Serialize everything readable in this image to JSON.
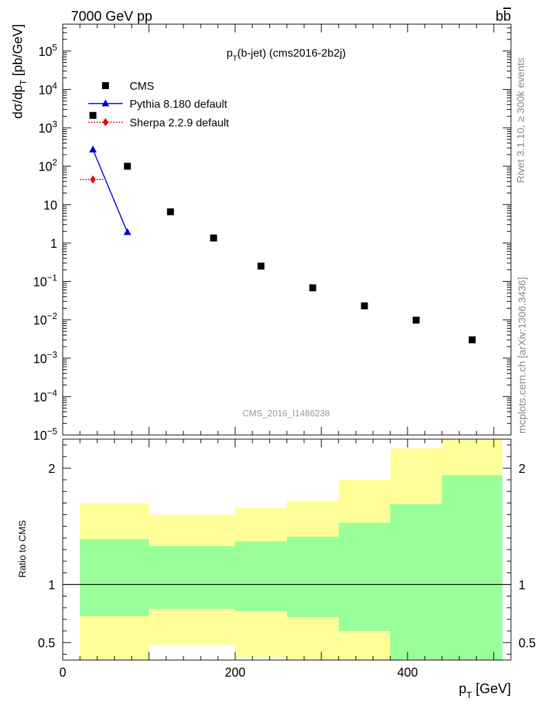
{
  "header": {
    "left": "7000 GeV pp",
    "right": "b",
    "right_bar": "b"
  },
  "side_labels": {
    "top": "Rivet 3.1.10, ≥ 300k events",
    "bottom": "mcplots.cern.ch [arXiv:1306.3436]"
  },
  "watermark": "CMS_2016_I1486238",
  "chart_data": [
    {
      "type": "scatter",
      "panel": "main",
      "title": "pT(b-jet) (cms2016-2b2j)",
      "title_main": "p",
      "title_sub": "T",
      "title_rest": "(b-jet) (cms2016-2b2j)",
      "ylabel": "dσ/dp",
      "ylabel_sub": "T",
      "ylabel_rest": " [pb/GeV]",
      "yscale": "log",
      "xlim": [
        0,
        520
      ],
      "ylim": [
        1e-05,
        500000.0
      ],
      "y_ticks": [
        {
          "value": 100000,
          "label": "10",
          "exp": "5"
        },
        {
          "value": 10000,
          "label": "10",
          "exp": "4"
        },
        {
          "value": 1000,
          "label": "10",
          "exp": "3"
        },
        {
          "value": 100,
          "label": "10",
          "exp": "2"
        },
        {
          "value": 10,
          "label": "10",
          "exp": ""
        },
        {
          "value": 1,
          "label": "1",
          "exp": ""
        },
        {
          "value": 0.1,
          "label": "10",
          "exp": "−1"
        },
        {
          "value": 0.01,
          "label": "10",
          "exp": "−2"
        },
        {
          "value": 0.001,
          "label": "10",
          "exp": "−3"
        },
        {
          "value": 0.0001,
          "label": "10",
          "exp": "−4"
        },
        {
          "value": 1e-05,
          "label": "10",
          "exp": "−5"
        }
      ],
      "legend_position": "top-left",
      "series": [
        {
          "name": "CMS",
          "marker": "square",
          "color": "#000000",
          "points": [
            {
              "x": 35,
              "y": 2100
            },
            {
              "x": 75,
              "y": 100
            },
            {
              "x": 125,
              "y": 6.5
            },
            {
              "x": 175,
              "y": 1.35
            },
            {
              "x": 230,
              "y": 0.25
            },
            {
              "x": 290,
              "y": 0.068
            },
            {
              "x": 350,
              "y": 0.023
            },
            {
              "x": 410,
              "y": 0.0098
            },
            {
              "x": 475,
              "y": 0.003
            }
          ]
        },
        {
          "name": "Pythia 8.180 default",
          "marker": "triangle",
          "color": "#0000cc",
          "line": "solid",
          "points": [
            {
              "x": 35,
              "y": 270
            },
            {
              "x": 75,
              "y": 1.9
            }
          ]
        },
        {
          "name": "Sherpa 2.2.9 default",
          "marker": "diamond",
          "color": "#ee0000",
          "line": "dotted",
          "points": [
            {
              "x": 35,
              "y": 45,
              "xerr": [
                20,
                50
              ]
            }
          ]
        }
      ]
    },
    {
      "type": "area",
      "panel": "ratio",
      "ylabel": "Ratio to CMS",
      "xlabel": "p",
      "xlabel_sub": "T",
      "xlabel_rest": " [GeV]",
      "xlim": [
        0,
        520
      ],
      "ylim": [
        0.35,
        2.25
      ],
      "x_ticks": [
        0,
        200,
        400
      ],
      "y_ticks": [
        0.5,
        1,
        2
      ],
      "reference_line": 1,
      "bands": [
        {
          "x0": 20,
          "x1": 100,
          "green": [
            0.73,
            1.39
          ],
          "yellow": [
            0.35,
            1.7
          ]
        },
        {
          "x0": 100,
          "x1": 200,
          "green": [
            0.79,
            1.33
          ],
          "yellow": [
            0.48,
            1.6
          ]
        },
        {
          "x0": 200,
          "x1": 260,
          "green": [
            0.77,
            1.37
          ],
          "yellow": [
            0.37,
            1.66
          ]
        },
        {
          "x0": 260,
          "x1": 320,
          "green": [
            0.72,
            1.41
          ],
          "yellow": [
            0.35,
            1.72
          ]
        },
        {
          "x0": 320,
          "x1": 380,
          "green": [
            0.6,
            1.53
          ],
          "yellow": [
            0.35,
            1.9
          ]
        },
        {
          "x0": 380,
          "x1": 440,
          "green": [
            0.35,
            1.69
          ],
          "yellow": [
            0.35,
            2.17
          ]
        },
        {
          "x0": 440,
          "x1": 510,
          "green": [
            0.35,
            1.94
          ],
          "yellow": [
            0.35,
            2.25
          ]
        }
      ],
      "colors": {
        "green": "#99ff99",
        "yellow": "#ffff99",
        "axis": "#000000",
        "text_grey": "#888888"
      }
    }
  ]
}
